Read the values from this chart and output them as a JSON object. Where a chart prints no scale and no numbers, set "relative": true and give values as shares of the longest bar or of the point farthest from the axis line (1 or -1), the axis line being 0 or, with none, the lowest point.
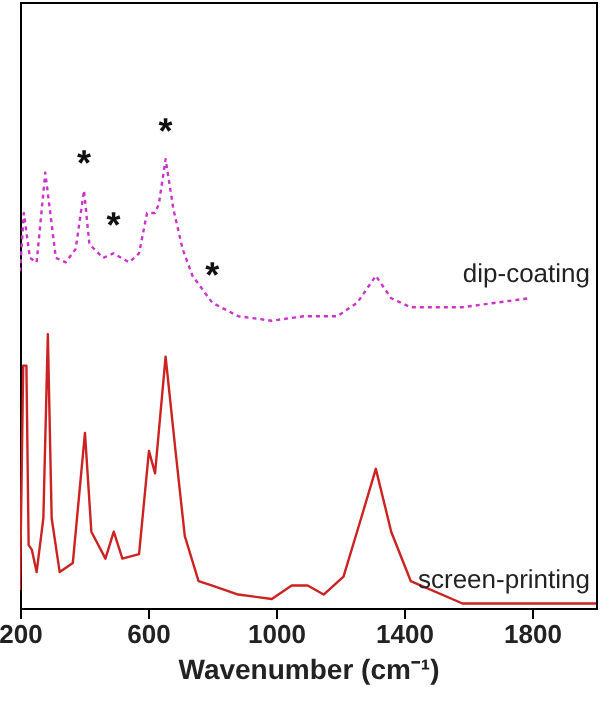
{
  "chart_data": {
    "type": "line",
    "relative": true,
    "xlabel": "Wavenumber (cm⁻¹)",
    "xlim": [
      200,
      2000
    ],
    "xticks": [
      200,
      600,
      1000,
      1400,
      1800
    ],
    "marker": "none",
    "grid": false,
    "legend": false,
    "series": [
      {
        "name": "dip-coating",
        "color": "#cc33cc",
        "line_style": "dotted",
        "x": [
          200,
          212,
          231,
          252,
          279,
          312,
          343,
          374,
          400,
          417,
          460,
          492,
          541,
          572,
          597,
          622,
          634,
          655,
          679,
          708,
          739,
          801,
          882,
          987,
          1087,
          1192,
          1254,
          1312,
          1360,
          1421,
          1583,
          1790
        ],
        "values": [
          0.75,
          0.88,
          0.78,
          0.77,
          0.97,
          0.78,
          0.77,
          0.8,
          0.93,
          0.81,
          0.78,
          0.79,
          0.77,
          0.79,
          0.88,
          0.88,
          0.9,
          1.0,
          0.89,
          0.8,
          0.74,
          0.68,
          0.65,
          0.64,
          0.65,
          0.65,
          0.68,
          0.74,
          0.69,
          0.67,
          0.67,
          0.69
        ]
      },
      {
        "name": "screen-printing",
        "color": "#cc2222",
        "line_style": "solid",
        "x": [
          200,
          210,
          220,
          227,
          237,
          252,
          273,
          287,
          299,
          324,
          365,
          403,
          423,
          467,
          493,
          520,
          572,
          603,
          622,
          655,
          686,
          715,
          758,
          801,
          882,
          987,
          1049,
          1099,
          1149,
          1211,
          1266,
          1312,
          1360,
          1421,
          1583,
          2000
        ],
        "values": [
          0.04,
          0.54,
          0.54,
          0.14,
          0.13,
          0.08,
          0.2,
          0.61,
          0.2,
          0.08,
          0.1,
          0.39,
          0.17,
          0.11,
          0.17,
          0.11,
          0.12,
          0.35,
          0.3,
          0.56,
          0.35,
          0.16,
          0.06,
          0.05,
          0.03,
          0.02,
          0.05,
          0.05,
          0.03,
          0.07,
          0.2,
          0.31,
          0.17,
          0.06,
          0.01,
          0.01
        ]
      }
    ],
    "annotations": [
      {
        "text": "*",
        "x": 400,
        "y": 0.93
      },
      {
        "text": "*",
        "x": 492,
        "y": 0.79
      },
      {
        "text": "*",
        "x": 655,
        "y": 1.0
      },
      {
        "text": "*",
        "x": 801,
        "y": 0.68
      }
    ]
  }
}
